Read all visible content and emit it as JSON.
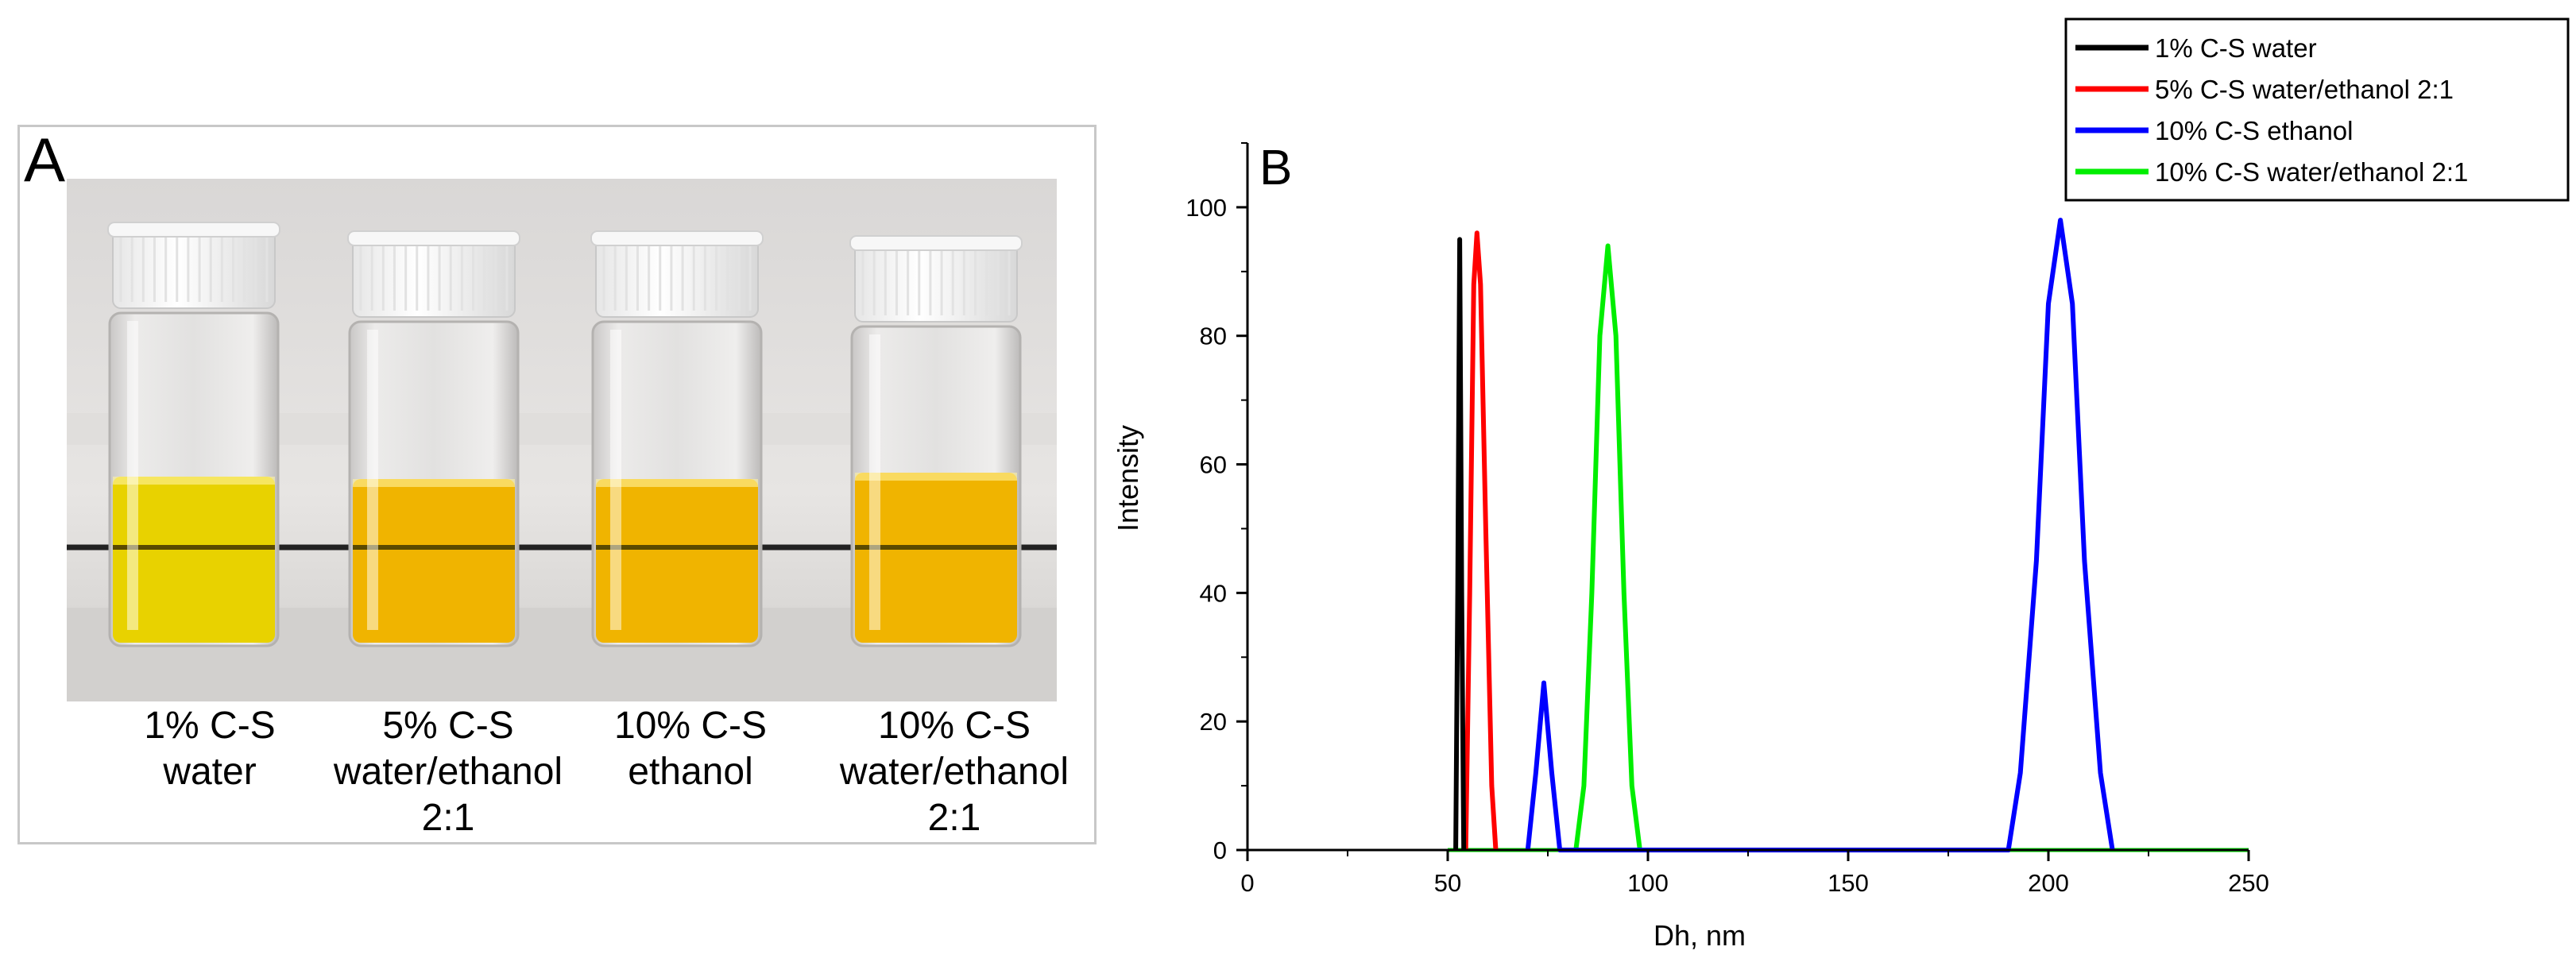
{
  "panel_a": {
    "letter": "A",
    "labels": [
      {
        "lines": [
          "1% C-S",
          "water"
        ]
      },
      {
        "lines": [
          "5% C-S",
          "water/ethanol",
          "2:1"
        ]
      },
      {
        "lines": [
          "10% C-S",
          "ethanol"
        ]
      },
      {
        "lines": [
          "10% C-S",
          "water/ethanol",
          "2:1"
        ]
      }
    ]
  },
  "colors": {
    "black_series": "#000000",
    "red_series": "#ff0000",
    "blue_series": "#0000ff",
    "green_series": "#00ee00",
    "liquid_light": "#e8d200",
    "liquid_dark": "#f0b400"
  },
  "chart_data": {
    "type": "line",
    "panel_letter": "B",
    "title": "",
    "xlabel": "Dh, nm",
    "ylabel": "Intensity",
    "xlim": [
      0,
      250
    ],
    "ylim": [
      0,
      110
    ],
    "xticks": [
      0,
      50,
      100,
      150,
      200,
      250
    ],
    "yticks": [
      0,
      20,
      40,
      60,
      80,
      100
    ],
    "legend_position": "top-right",
    "series": [
      {
        "name": "1% C-S water",
        "color": "#000000",
        "points": [
          [
            52.0,
            0
          ],
          [
            52.5,
            40
          ],
          [
            53.0,
            95
          ],
          [
            53.5,
            40
          ],
          [
            54.0,
            0
          ]
        ]
      },
      {
        "name": "5% C-S water/ethanol 2:1",
        "color": "#ff0000",
        "points": [
          [
            54.5,
            0
          ],
          [
            55.5,
            40
          ],
          [
            56.5,
            88
          ],
          [
            57.3,
            96
          ],
          [
            58.2,
            88
          ],
          [
            59.5,
            50
          ],
          [
            61.0,
            10
          ],
          [
            62.0,
            0
          ]
        ]
      },
      {
        "name": "10% C-S ethanol",
        "color": "#0000ff",
        "points": [
          [
            70,
            0
          ],
          [
            72,
            12
          ],
          [
            74,
            26
          ],
          [
            76,
            12
          ],
          [
            78,
            0
          ],
          [
            190,
            0
          ],
          [
            193,
            12
          ],
          [
            197,
            45
          ],
          [
            200,
            85
          ],
          [
            203,
            98
          ],
          [
            206,
            85
          ],
          [
            209,
            45
          ],
          [
            213,
            12
          ],
          [
            216,
            0
          ]
        ]
      },
      {
        "name": "10% C-S water/ethanol 2:1",
        "color": "#00ee00",
        "points": [
          [
            82,
            0
          ],
          [
            84,
            10
          ],
          [
            86,
            40
          ],
          [
            88,
            80
          ],
          [
            90,
            94
          ],
          [
            92,
            80
          ],
          [
            94,
            40
          ],
          [
            96,
            10
          ],
          [
            98,
            0
          ]
        ]
      }
    ],
    "baseline_range": [
      50,
      250
    ]
  }
}
